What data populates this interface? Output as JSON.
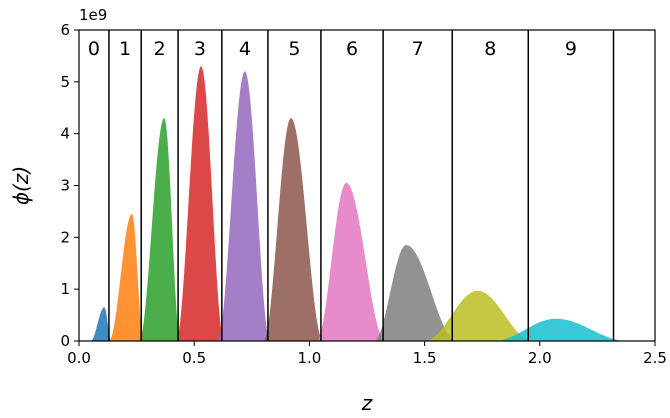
{
  "chart_data": {
    "type": "area",
    "xlabel": "z",
    "ylabel": "ϕ(z)",
    "offset_text": "1e9",
    "xlim": [
      0.0,
      2.5
    ],
    "ylim": [
      0,
      6
    ],
    "xticks": [
      "0.0",
      "0.5",
      "1.0",
      "1.5",
      "2.0",
      "2.5"
    ],
    "yticks": [
      "0",
      "1",
      "2",
      "3",
      "4",
      "5",
      "6"
    ],
    "grid": false,
    "bin_edges": [
      0.13,
      0.27,
      0.43,
      0.62,
      0.82,
      1.05,
      1.32,
      1.62,
      1.95,
      2.32
    ],
    "series": [
      {
        "bin_label": "0",
        "color": "#1f77b4",
        "start": 0.05,
        "peak_x": 0.11,
        "peak": 0.65,
        "end": 0.14
      },
      {
        "bin_label": "1",
        "color": "#ff7f0e",
        "start": 0.13,
        "peak_x": 0.23,
        "peak": 2.45,
        "end": 0.28
      },
      {
        "bin_label": "2",
        "color": "#2ca02c",
        "start": 0.26,
        "peak_x": 0.37,
        "peak": 4.3,
        "end": 0.44
      },
      {
        "bin_label": "3",
        "color": "#d62728",
        "start": 0.42,
        "peak_x": 0.53,
        "peak": 5.3,
        "end": 0.63
      },
      {
        "bin_label": "4",
        "color": "#9467bd",
        "start": 0.6,
        "peak_x": 0.72,
        "peak": 5.2,
        "end": 0.83
      },
      {
        "bin_label": "5",
        "color": "#8c564b",
        "start": 0.8,
        "peak_x": 0.92,
        "peak": 4.3,
        "end": 1.06
      },
      {
        "bin_label": "6",
        "color": "#e377c2",
        "start": 1.03,
        "peak_x": 1.16,
        "peak": 3.05,
        "end": 1.33
      },
      {
        "bin_label": "7",
        "color": "#7f7f7f",
        "start": 1.28,
        "peak_x": 1.42,
        "peak": 1.85,
        "end": 1.64
      },
      {
        "bin_label": "8",
        "color": "#bcbd22",
        "start": 1.5,
        "peak_x": 1.73,
        "peak": 0.97,
        "end": 1.97
      },
      {
        "bin_label": "9",
        "color": "#17becf",
        "start": 1.8,
        "peak_x": 2.07,
        "peak": 0.43,
        "end": 2.38
      }
    ]
  }
}
